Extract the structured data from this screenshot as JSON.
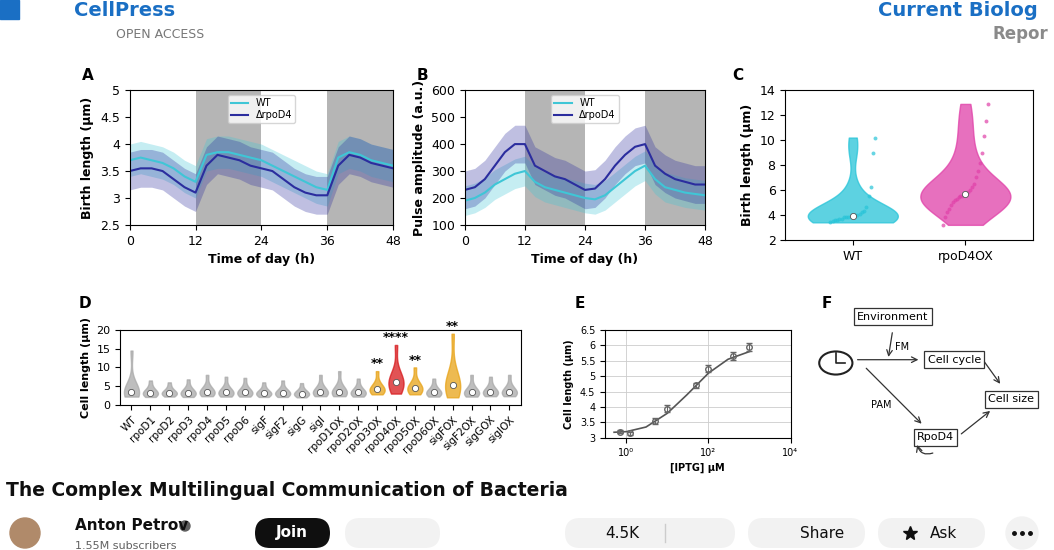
{
  "header": {
    "publisher": "CellPress",
    "access": "OPEN ACCESS",
    "journal": "Current Biolog",
    "article_type": "Repor"
  },
  "chart_data": [
    {
      "panel": "A",
      "type": "line",
      "xlabel": "Time of day (h)",
      "ylabel": "Birth length (μm)",
      "xlim": [
        0,
        48
      ],
      "xticks": [
        0,
        12,
        24,
        36,
        48
      ],
      "ylim": [
        2.5,
        5
      ],
      "yticks": [
        2.5,
        3,
        3.5,
        4,
        4.5,
        5
      ],
      "legend": "upper center",
      "night": [
        [
          12,
          24
        ],
        [
          36,
          48
        ]
      ],
      "x": [
        0,
        2,
        4,
        6,
        8,
        10,
        12,
        14,
        16,
        18,
        20,
        22,
        24,
        26,
        28,
        30,
        32,
        34,
        36,
        38,
        40,
        42,
        44,
        46,
        48
      ],
      "series": [
        {
          "name": "WT",
          "color": "#3fc6d6",
          "values": [
            3.7,
            3.75,
            3.7,
            3.65,
            3.55,
            3.4,
            3.3,
            3.8,
            3.85,
            3.85,
            3.8,
            3.75,
            3.7,
            3.6,
            3.5,
            3.4,
            3.3,
            3.2,
            3.15,
            3.75,
            3.85,
            3.8,
            3.7,
            3.65,
            3.6
          ],
          "band": [
            0.3,
            0.3,
            0.3,
            0.3,
            0.3,
            0.3,
            0.3,
            0.3,
            0.3,
            0.3,
            0.3,
            0.3,
            0.3,
            0.3,
            0.3,
            0.3,
            0.3,
            0.3,
            0.3,
            0.3,
            0.3,
            0.3,
            0.3,
            0.3,
            0.3
          ]
        },
        {
          "name": "ΔrpoD4",
          "color": "#2b2d9e",
          "values": [
            3.5,
            3.55,
            3.55,
            3.5,
            3.35,
            3.2,
            3.1,
            3.6,
            3.8,
            3.75,
            3.7,
            3.6,
            3.55,
            3.5,
            3.35,
            3.2,
            3.1,
            3.05,
            3.05,
            3.6,
            3.8,
            3.75,
            3.65,
            3.6,
            3.55
          ],
          "band": [
            0.35,
            0.35,
            0.35,
            0.35,
            0.35,
            0.35,
            0.35,
            0.35,
            0.35,
            0.35,
            0.35,
            0.35,
            0.35,
            0.35,
            0.35,
            0.35,
            0.35,
            0.35,
            0.35,
            0.35,
            0.35,
            0.35,
            0.35,
            0.35,
            0.35
          ]
        }
      ]
    },
    {
      "panel": "B",
      "type": "line",
      "xlabel": "Time of day (h)",
      "ylabel": "Pulse amplitude (a.u.)",
      "xlim": [
        0,
        48
      ],
      "xticks": [
        0,
        12,
        24,
        36,
        48
      ],
      "ylim": [
        100,
        600
      ],
      "yticks": [
        100,
        200,
        300,
        400,
        500,
        600
      ],
      "legend": "upper center",
      "night": [
        [
          12,
          24
        ],
        [
          36,
          48
        ]
      ],
      "x": [
        0,
        2,
        4,
        6,
        8,
        10,
        12,
        14,
        16,
        18,
        20,
        22,
        24,
        26,
        28,
        30,
        32,
        34,
        36,
        38,
        40,
        42,
        44,
        46,
        48
      ],
      "series": [
        {
          "name": "WT",
          "color": "#3fc6d6",
          "values": [
            190,
            200,
            220,
            250,
            270,
            290,
            300,
            260,
            240,
            230,
            220,
            210,
            200,
            195,
            210,
            240,
            270,
            300,
            320,
            270,
            240,
            230,
            220,
            215,
            210
          ],
          "band": [
            55,
            55,
            55,
            55,
            55,
            55,
            55,
            55,
            55,
            55,
            55,
            55,
            55,
            55,
            55,
            55,
            55,
            55,
            55,
            55,
            55,
            55,
            55,
            55,
            55
          ]
        },
        {
          "name": "ΔrpoD4",
          "color": "#2b2d9e",
          "values": [
            230,
            240,
            270,
            320,
            370,
            400,
            400,
            320,
            300,
            280,
            270,
            250,
            230,
            235,
            270,
            320,
            360,
            390,
            400,
            320,
            290,
            270,
            260,
            250,
            250
          ],
          "band": [
            70,
            70,
            70,
            70,
            70,
            70,
            70,
            70,
            70,
            70,
            70,
            70,
            70,
            70,
            70,
            70,
            70,
            70,
            70,
            70,
            70,
            70,
            70,
            70,
            70
          ]
        }
      ]
    },
    {
      "panel": "C",
      "type": "violin",
      "ylabel": "Birth length (μm)",
      "categories": [
        "WT",
        "rpoD4OX"
      ],
      "colors": [
        "#27c4d8",
        "#e040a8"
      ],
      "ylim": [
        2,
        14
      ],
      "yticks": [
        2,
        4,
        6,
        8,
        10,
        12,
        14
      ],
      "samples": [
        [
          3.4,
          3.5,
          3.6,
          3.6,
          3.7,
          3.7,
          3.8,
          3.8,
          3.8,
          3.9,
          3.9,
          4.0,
          4.0,
          4.1,
          4.2,
          4.3,
          4.6,
          5.5,
          6.2,
          9.0,
          10.2
        ],
        [
          3.2,
          3.8,
          4.2,
          4.5,
          4.8,
          5.0,
          5.2,
          5.3,
          5.4,
          5.5,
          5.5,
          5.6,
          5.7,
          5.8,
          6.0,
          6.2,
          6.5,
          7.0,
          7.5,
          8.2,
          9.0,
          10.3,
          11.5,
          12.9
        ]
      ]
    },
    {
      "panel": "D",
      "type": "violin",
      "ylabel": "Cell length (μm)",
      "categories": [
        "WT",
        "rpoD1",
        "rpoD2",
        "rpoD3",
        "rpoD4",
        "rpoD5",
        "rpoD6",
        "sigF",
        "sigF2",
        "sigG",
        "sigI",
        "rpoD1OX",
        "rpoD2OX",
        "rpoD3OX",
        "rpoD4OX",
        "rpoD5OX",
        "rpoD6OX",
        "sigFOX",
        "sigF2OX",
        "sigGOX",
        "sigIOX"
      ],
      "colors": [
        "#a9a9a9",
        "#a9a9a9",
        "#a9a9a9",
        "#a9a9a9",
        "#a9a9a9",
        "#a9a9a9",
        "#a9a9a9",
        "#a9a9a9",
        "#a9a9a9",
        "#a9a9a9",
        "#a9a9a9",
        "#a9a9a9",
        "#a9a9a9",
        "#e8a317",
        "#d7191c",
        "#e8a317",
        "#a9a9a9",
        "#e8a317",
        "#a9a9a9",
        "#a9a9a9",
        "#a9a9a9"
      ],
      "ylim": [
        0,
        20
      ],
      "yticks": [
        0,
        5,
        10,
        15,
        20
      ],
      "samples": [
        [
          2.2,
          2.6,
          2.9,
          3.1,
          3.3,
          3.6,
          4.0,
          5.5,
          14.5
        ],
        [
          2.1,
          2.5,
          2.8,
          3.0,
          3.2,
          3.5,
          3.9,
          4.8,
          6.5
        ],
        [
          2.2,
          2.6,
          2.9,
          3.0,
          3.2,
          3.4,
          3.8,
          4.6,
          6.0
        ],
        [
          2.1,
          2.5,
          2.8,
          3.0,
          3.2,
          3.5,
          3.9,
          4.8,
          6.8
        ],
        [
          2.3,
          2.7,
          3.0,
          3.2,
          3.4,
          3.7,
          4.2,
          5.2,
          8.0
        ],
        [
          2.2,
          2.6,
          2.9,
          3.1,
          3.3,
          3.6,
          4.0,
          5.0,
          7.5
        ],
        [
          2.2,
          2.6,
          2.9,
          3.1,
          3.3,
          3.6,
          4.0,
          5.0,
          7.2
        ],
        [
          2.1,
          2.5,
          2.8,
          3.0,
          3.1,
          3.3,
          3.7,
          4.5,
          6.0
        ],
        [
          2.1,
          2.5,
          2.8,
          3.0,
          3.1,
          3.4,
          3.8,
          4.5,
          6.5
        ],
        [
          2.0,
          2.4,
          2.7,
          2.9,
          3.0,
          3.2,
          3.6,
          4.3,
          5.8
        ],
        [
          2.3,
          2.7,
          3.0,
          3.2,
          3.4,
          3.7,
          4.2,
          5.3,
          8.0
        ],
        [
          2.3,
          2.7,
          3.0,
          3.2,
          3.4,
          3.7,
          4.2,
          5.5,
          9.0
        ],
        [
          2.2,
          2.6,
          2.9,
          3.1,
          3.3,
          3.6,
          4.0,
          5.0,
          7.0
        ],
        [
          2.8,
          3.3,
          3.6,
          3.9,
          4.1,
          4.4,
          4.9,
          6.0,
          9.0
        ],
        [
          3.0,
          4.2,
          5.0,
          5.6,
          6.0,
          6.5,
          7.3,
          9.0,
          16.0
        ],
        [
          2.8,
          3.4,
          3.8,
          4.1,
          4.4,
          4.8,
          5.3,
          6.5,
          10.0
        ],
        [
          2.2,
          2.6,
          2.9,
          3.1,
          3.3,
          3.6,
          4.0,
          5.0,
          7.0
        ],
        [
          2.0,
          3.2,
          4.0,
          4.6,
          5.2,
          6.0,
          7.0,
          9.5,
          19.0
        ],
        [
          2.2,
          2.6,
          2.9,
          3.1,
          3.3,
          3.6,
          4.0,
          5.2,
          8.0
        ],
        [
          2.3,
          2.7,
          3.0,
          3.2,
          3.4,
          3.7,
          4.2,
          5.3,
          7.5
        ],
        [
          2.3,
          2.7,
          3.0,
          3.2,
          3.4,
          3.7,
          4.2,
          5.3,
          8.0
        ]
      ],
      "annotations": [
        {
          "category": "rpoD3OX",
          "text": "**"
        },
        {
          "category": "rpoD4OX",
          "text": "****"
        },
        {
          "category": "rpoD5OX",
          "text": "**"
        },
        {
          "category": "sigFOX",
          "text": "**"
        }
      ]
    },
    {
      "panel": "E",
      "type": "line",
      "log": "x",
      "grid": true,
      "xlabel": "[IPTG] μM",
      "ylabel": "Cell length (μm)",
      "xlim": [
        0.3,
        10000
      ],
      "xticks": [
        {
          "value": 1,
          "label": "10⁰"
        },
        {
          "value": 100,
          "label": "10²"
        },
        {
          "value": 10000,
          "label": "10⁴"
        }
      ],
      "ylim": [
        3,
        6.5
      ],
      "yticks": [
        3,
        3.5,
        4,
        4.5,
        5,
        5.5,
        6,
        6.5
      ],
      "points": {
        "type": "scatter",
        "marker": "o",
        "color": "#666666",
        "x": [
          0.7,
          1.2,
          5,
          10,
          50,
          100,
          400,
          1000
        ],
        "values": [
          3.2,
          3.15,
          3.55,
          3.95,
          4.7,
          5.25,
          5.65,
          5.95
        ],
        "errors": [
          0.05,
          0.05,
          0.1,
          0.1,
          0.08,
          0.1,
          0.12,
          0.12
        ]
      },
      "fit": {
        "type": "line",
        "color": "#555555",
        "x": [
          0.5,
          1,
          3,
          10,
          30,
          100,
          300,
          1000
        ],
        "values": [
          3.18,
          3.2,
          3.35,
          3.8,
          4.4,
          5.1,
          5.55,
          5.8
        ]
      }
    }
  ],
  "diagram": {
    "panel": "F",
    "nodes": {
      "environment": "Environment",
      "cell_cycle": "Cell cycle",
      "rpod4": "RpoD4",
      "cell_size": "Cell size"
    },
    "edge_labels": {
      "fm": "FM",
      "pam": "PAM"
    }
  },
  "video": {
    "title": "The Complex Multilingual Communication of Bacteria",
    "channel": "Anton Petrov",
    "subscribers": "1.55M subscribers",
    "join": "Join",
    "likes": "4.5K",
    "share": "Share",
    "ask": "Ask"
  }
}
